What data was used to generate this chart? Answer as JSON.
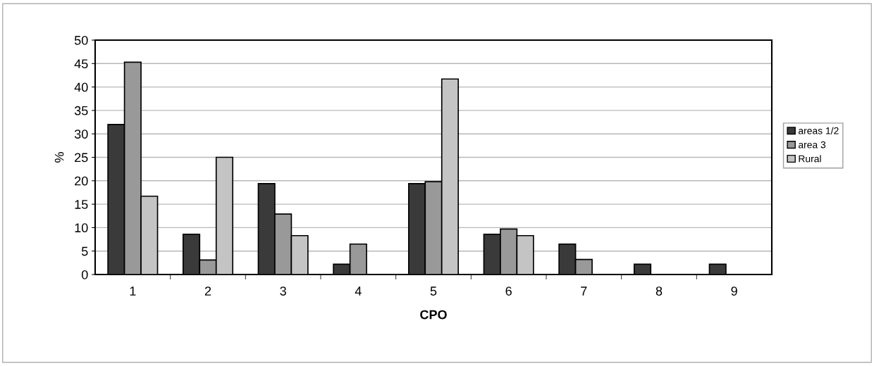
{
  "chart_data": {
    "type": "bar",
    "xlabel": "CPO",
    "ylabel": "%",
    "categories": [
      "1",
      "2",
      "3",
      "4",
      "5",
      "6",
      "7",
      "8",
      "9"
    ],
    "series": [
      {
        "name": "areas 1/2",
        "color": "#3a3a3a",
        "values": [
          32,
          8.6,
          19.4,
          2.2,
          19.4,
          8.6,
          6.5,
          2.2,
          2.2
        ]
      },
      {
        "name": "area 3",
        "color": "#999999",
        "values": [
          45.3,
          3.1,
          12.9,
          6.5,
          19.8,
          9.7,
          3.2,
          null,
          null
        ]
      },
      {
        "name": "Rural",
        "color": "#c4c4c4",
        "values": [
          16.7,
          25,
          8.3,
          null,
          41.7,
          8.3,
          null,
          null,
          null
        ]
      }
    ],
    "ylim": [
      0,
      50
    ],
    "yticks": [
      0,
      5,
      10,
      15,
      20,
      25,
      30,
      35,
      40,
      45,
      50
    ],
    "grid": "y",
    "legend": "right"
  }
}
